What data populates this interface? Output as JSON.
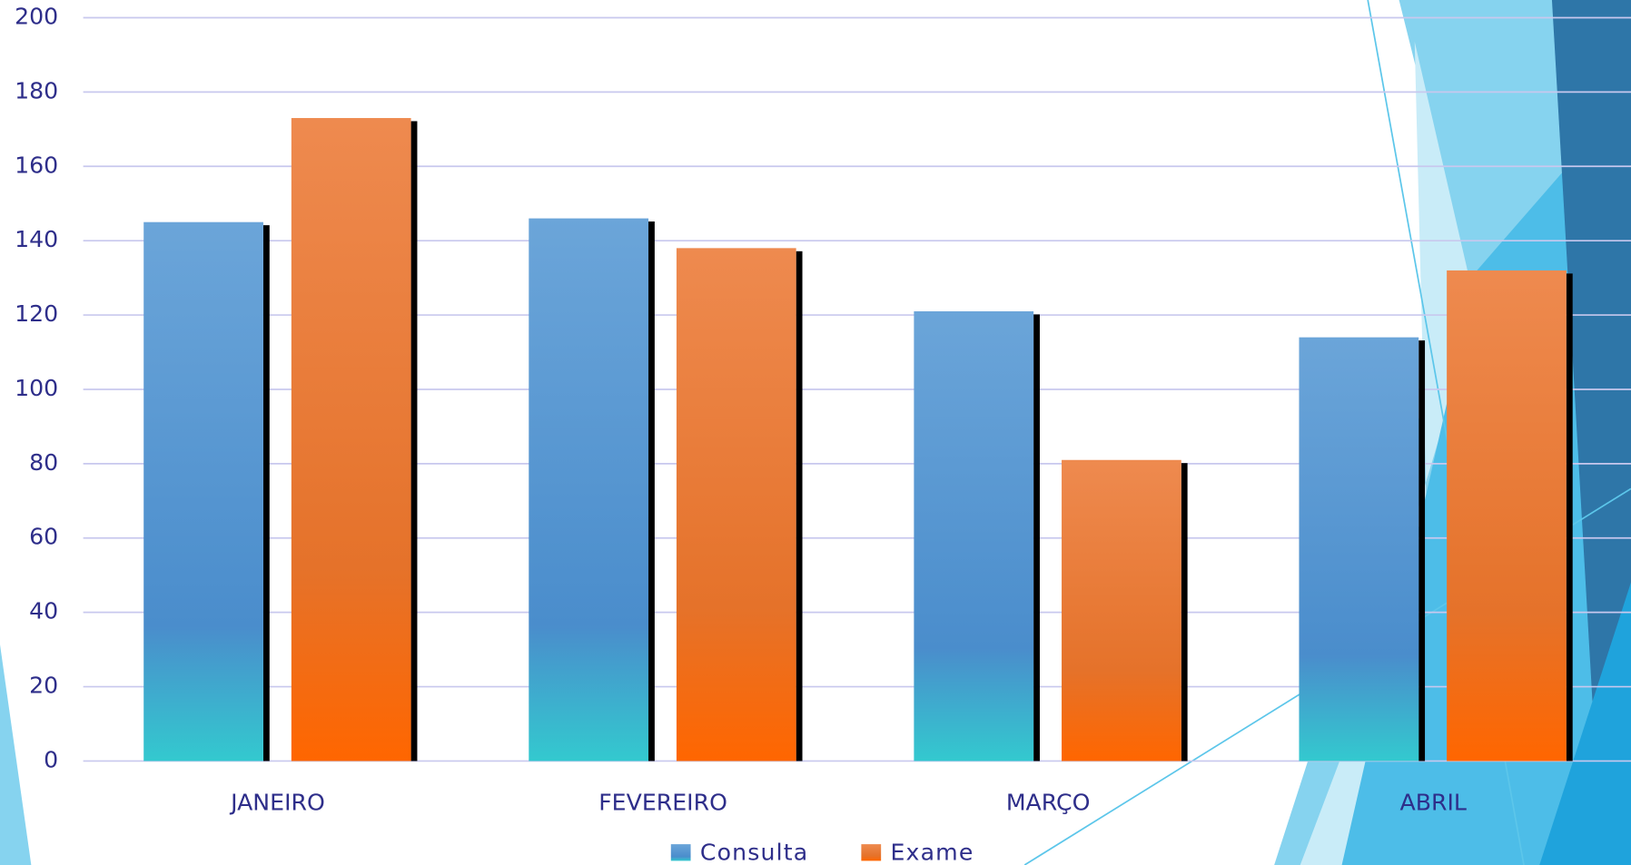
{
  "chart_data": {
    "type": "bar",
    "categories": [
      "JANEIRO",
      "FEVEREIRO",
      "MARÇO",
      "ABRIL"
    ],
    "series": [
      {
        "name": "Consulta",
        "color": "#5b9bd5",
        "values": [
          145,
          146,
          121,
          114
        ]
      },
      {
        "name": "Exame",
        "color": "#ed7d31",
        "values": [
          173,
          138,
          81,
          132
        ]
      }
    ],
    "ylim": [
      0,
      200
    ],
    "yticks": [
      0,
      20,
      40,
      60,
      80,
      100,
      120,
      140,
      160,
      180,
      200
    ],
    "grid": true,
    "legend": "bottom"
  }
}
